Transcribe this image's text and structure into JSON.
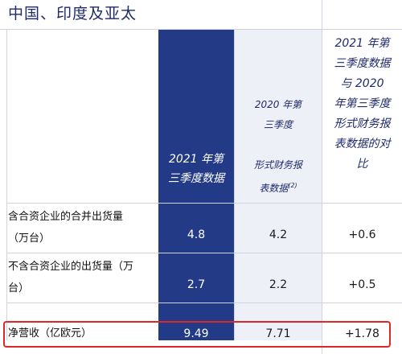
{
  "title": "中国、印度及亚太",
  "columns": [
    {
      "lines": [
        "2021 年第",
        "三季度数据"
      ]
    },
    {
      "lines": [
        "2020 年第",
        "三季度",
        "",
        "形式财务报",
        "表数据"
      ],
      "superscript": "(2)"
    },
    {
      "lines": [
        "2021 年第",
        "三季度数据",
        "与 2020",
        "年第三季度",
        "形式财务报",
        "表数据的对",
        "比"
      ]
    }
  ],
  "rows": [
    {
      "label_lines": [
        "含合资企业的合并出货量",
        "（万台）"
      ],
      "values": [
        "4.8",
        "4.2",
        "+0.6"
      ]
    },
    {
      "label_lines": [
        "不含合资企业的出货量（万",
        "台）"
      ],
      "values": [
        "2.7",
        "2.2",
        "+0.5"
      ]
    },
    {
      "label_lines": [
        "净营收（亿欧元）"
      ],
      "values": [
        "9.49",
        "7.71",
        "+1.78"
      ]
    }
  ],
  "colors": {
    "title": "#1f2a6b",
    "highlight_column": "#233a87",
    "shaded_column": "#eef0f7",
    "highlight_border": "#e0262a"
  }
}
